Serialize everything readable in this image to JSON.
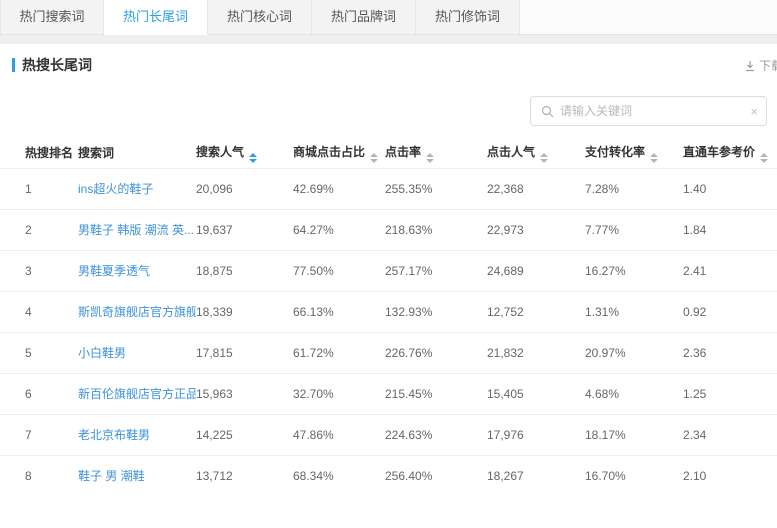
{
  "tabs": [
    {
      "label": "热门搜索词",
      "active": false
    },
    {
      "label": "热门长尾词",
      "active": true
    },
    {
      "label": "热门核心词",
      "active": false
    },
    {
      "label": "热门品牌词",
      "active": false
    },
    {
      "label": "热门修饰词",
      "active": false
    }
  ],
  "section": {
    "title": "热搜长尾词",
    "download_label": "下载"
  },
  "search": {
    "placeholder": "请输入关键词",
    "clear_label": "×"
  },
  "table": {
    "columns": [
      {
        "label": "热搜排名",
        "sortable": false,
        "sort_active": false
      },
      {
        "label": "搜索词",
        "sortable": false,
        "sort_active": false
      },
      {
        "label": "搜索人气",
        "sortable": true,
        "sort_active": true
      },
      {
        "label": "商城点击占比",
        "sortable": true,
        "sort_active": false
      },
      {
        "label": "点击率",
        "sortable": true,
        "sort_active": false
      },
      {
        "label": "点击人气",
        "sortable": true,
        "sort_active": false
      },
      {
        "label": "支付转化率",
        "sortable": true,
        "sort_active": false
      },
      {
        "label": "直通车参考价",
        "sortable": true,
        "sort_active": false
      }
    ],
    "rows": [
      {
        "rank": "1",
        "keyword": "ins超火的鞋子",
        "search_popularity": "20,096",
        "mall_click_ratio": "42.69%",
        "click_rate": "255.35%",
        "click_popularity": "22,368",
        "pay_conversion": "7.28%",
        "ztc_ref_price": "1.40"
      },
      {
        "rank": "2",
        "keyword": "男鞋子 韩版 潮流 英...",
        "search_popularity": "19,637",
        "mall_click_ratio": "64.27%",
        "click_rate": "218.63%",
        "click_popularity": "22,973",
        "pay_conversion": "7.77%",
        "ztc_ref_price": "1.84"
      },
      {
        "rank": "3",
        "keyword": "男鞋夏季透气",
        "search_popularity": "18,875",
        "mall_click_ratio": "77.50%",
        "click_rate": "257.17%",
        "click_popularity": "24,689",
        "pay_conversion": "16.27%",
        "ztc_ref_price": "2.41"
      },
      {
        "rank": "4",
        "keyword": "斯凯奇旗舰店官方旗舰",
        "search_popularity": "18,339",
        "mall_click_ratio": "66.13%",
        "click_rate": "132.93%",
        "click_popularity": "12,752",
        "pay_conversion": "1.31%",
        "ztc_ref_price": "0.92"
      },
      {
        "rank": "5",
        "keyword": "小白鞋男",
        "search_popularity": "17,815",
        "mall_click_ratio": "61.72%",
        "click_rate": "226.76%",
        "click_popularity": "21,832",
        "pay_conversion": "20.97%",
        "ztc_ref_price": "2.36"
      },
      {
        "rank": "6",
        "keyword": "新百伦旗舰店官方正品",
        "search_popularity": "15,963",
        "mall_click_ratio": "32.70%",
        "click_rate": "215.45%",
        "click_popularity": "15,405",
        "pay_conversion": "4.68%",
        "ztc_ref_price": "1.25"
      },
      {
        "rank": "7",
        "keyword": "老北京布鞋男",
        "search_popularity": "14,225",
        "mall_click_ratio": "47.86%",
        "click_rate": "224.63%",
        "click_popularity": "17,976",
        "pay_conversion": "18.17%",
        "ztc_ref_price": "2.34"
      },
      {
        "rank": "8",
        "keyword": "鞋子 男 潮鞋",
        "search_popularity": "13,712",
        "mall_click_ratio": "68.34%",
        "click_rate": "256.40%",
        "click_popularity": "18,267",
        "pay_conversion": "16.70%",
        "ztc_ref_price": "2.10"
      }
    ]
  },
  "colors": {
    "accent": "#2b9fe0",
    "link": "#3d92d9",
    "header_text": "#333333",
    "cell_text": "#666666"
  }
}
